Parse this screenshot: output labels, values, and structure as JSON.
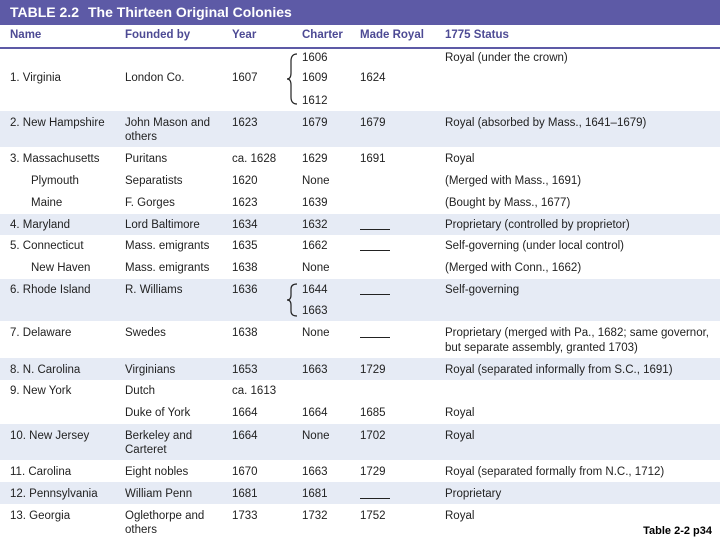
{
  "title": {
    "number": "TABLE 2.2",
    "name": "The Thirteen Original Colonies"
  },
  "headers": {
    "name": "Name",
    "founded": "Founded by",
    "year": "Year",
    "charter": "Charter",
    "royal": "Made Royal",
    "status": "1775 Status"
  },
  "rows": [
    {
      "name": "1. Virginia",
      "founded": "London Co.",
      "year": "1607",
      "charter": [
        "1606",
        "1609",
        "1612"
      ],
      "royal": "1624",
      "status": "Royal (under the crown)"
    },
    {
      "name": "2. New Hampshire",
      "founded": "John Mason and others",
      "year": "1623",
      "charter": "1679",
      "royal": "1679",
      "status": "Royal (absorbed by Mass., 1641–1679)"
    },
    {
      "name": "3. Massachusetts",
      "founded": "Puritans",
      "year": "ca. 1628",
      "charter": "1629",
      "royal": "1691",
      "status": "Royal"
    },
    {
      "name": "Plymouth",
      "founded": "Separatists",
      "year": "1620",
      "charter": "None",
      "royal": "",
      "status": "(Merged with Mass., 1691)"
    },
    {
      "name": "Maine",
      "founded": "F. Gorges",
      "year": "1623",
      "charter": "1639",
      "royal": "",
      "status": "(Bought by Mass., 1677)"
    },
    {
      "name": "4. Maryland",
      "founded": "Lord Baltimore",
      "year": "1634",
      "charter": "1632",
      "royal": "",
      "status": "Proprietary (controlled by proprietor)"
    },
    {
      "name": "5. Connecticut",
      "founded": "Mass. emigrants",
      "year": "1635",
      "charter": "1662",
      "royal": "",
      "status": "Self-governing (under local control)"
    },
    {
      "name": "New Haven",
      "founded": "Mass. emigrants",
      "year": "1638",
      "charter": "None",
      "royal": "",
      "status": "(Merged with Conn., 1662)"
    },
    {
      "name": "6. Rhode Island",
      "founded": "R. Williams",
      "year": "1636",
      "charter": [
        "1644",
        "1663"
      ],
      "royal": "",
      "status": "Self-governing"
    },
    {
      "name": "7. Delaware",
      "founded": "Swedes",
      "year": "1638",
      "charter": "None",
      "royal": "",
      "status": "Proprietary (merged with Pa., 1682; same governor, but separate assembly, granted 1703)"
    },
    {
      "name": "8. N. Carolina",
      "founded": "Virginians",
      "year": "1653",
      "charter": "1663",
      "royal": "1729",
      "status": "Royal (separated informally from S.C., 1691)"
    },
    {
      "name": "9. New York",
      "founded": "Dutch",
      "year": "ca. 1613",
      "charter": "",
      "royal": "",
      "status": ""
    },
    {
      "name": "",
      "founded": "Duke of York",
      "year": "1664",
      "charter": "1664",
      "royal": "1685",
      "status": "Royal"
    },
    {
      "name": "10. New Jersey",
      "founded": "Berkeley and Carteret",
      "year": "1664",
      "charter": "None",
      "royal": "1702",
      "status": "Royal"
    },
    {
      "name": "11. Carolina",
      "founded": "Eight nobles",
      "year": "1670",
      "charter": "1663",
      "royal": "1729",
      "status": "Royal (separated formally from N.C., 1712)"
    },
    {
      "name": "12. Pennsylvania",
      "founded": "William Penn",
      "year": "1681",
      "charter": "1681",
      "royal": "",
      "status": "Proprietary"
    },
    {
      "name": "13. Georgia",
      "founded": "Oglethorpe and others",
      "year": "1733",
      "charter": "1732",
      "royal": "1752",
      "status": "Royal"
    }
  ],
  "caption": "Table 2-2 p34"
}
